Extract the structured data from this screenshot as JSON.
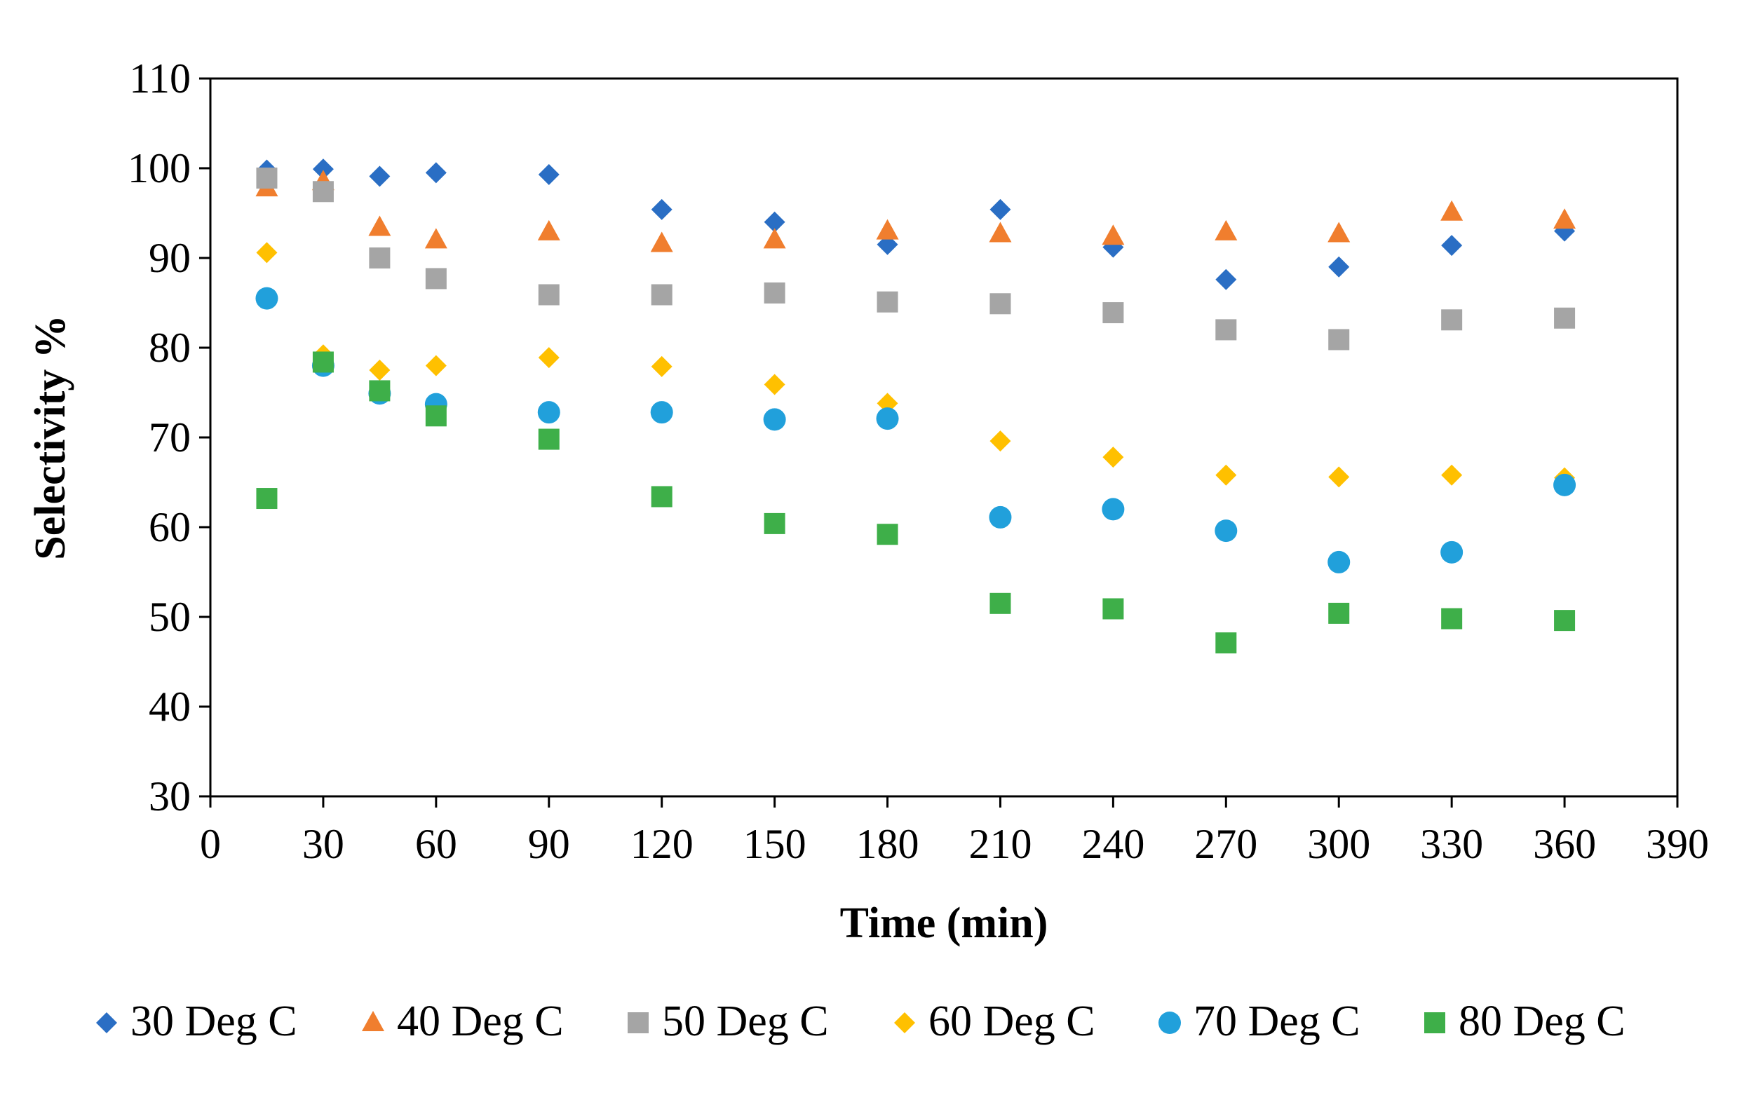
{
  "chart_data": {
    "type": "scatter",
    "title": "",
    "xlabel": "Time (min)",
    "ylabel": "Selectivity %",
    "xlim": [
      0,
      390
    ],
    "ylim": [
      30,
      110
    ],
    "xticks": [
      "0",
      "30",
      "60",
      "90",
      "120",
      "150",
      "180",
      "210",
      "240",
      "270",
      "300",
      "330",
      "360",
      "390"
    ],
    "yticks": [
      "30",
      "40",
      "50",
      "60",
      "70",
      "80",
      "90",
      "100",
      "110"
    ],
    "grid": false,
    "legend_position": "bottom",
    "series": [
      {
        "name": "30 Deg C",
        "marker": "diamond",
        "color": "#2A6EC4",
        "points": [
          [
            15,
            99.8
          ],
          [
            30,
            99.9
          ],
          [
            45,
            99.1
          ],
          [
            60,
            99.5
          ],
          [
            90,
            99.3
          ],
          [
            120,
            95.4
          ],
          [
            150,
            94.0
          ],
          [
            180,
            91.5
          ],
          [
            210,
            95.4
          ],
          [
            240,
            91.2
          ],
          [
            270,
            87.6
          ],
          [
            300,
            89.0
          ],
          [
            330,
            91.4
          ],
          [
            360,
            93.0
          ]
        ]
      },
      {
        "name": "40 Deg C",
        "marker": "triangle",
        "color": "#F07E2E",
        "points": [
          [
            15,
            97.8
          ],
          [
            30,
            98.5
          ],
          [
            45,
            93.4
          ],
          [
            60,
            92.0
          ],
          [
            90,
            92.9
          ],
          [
            120,
            91.6
          ],
          [
            150,
            92.0
          ],
          [
            180,
            93.0
          ],
          [
            210,
            92.7
          ],
          [
            240,
            92.4
          ],
          [
            270,
            92.9
          ],
          [
            300,
            92.7
          ],
          [
            330,
            95.1
          ],
          [
            360,
            94.2
          ]
        ]
      },
      {
        "name": "50 Deg C",
        "marker": "square",
        "color": "#A5A5A5",
        "points": [
          [
            15,
            98.9
          ],
          [
            30,
            97.4
          ],
          [
            45,
            90.0
          ],
          [
            60,
            87.7
          ],
          [
            90,
            85.9
          ],
          [
            120,
            85.9
          ],
          [
            150,
            86.1
          ],
          [
            180,
            85.1
          ],
          [
            210,
            84.9
          ],
          [
            240,
            83.9
          ],
          [
            270,
            82.0
          ],
          [
            300,
            80.9
          ],
          [
            330,
            83.1
          ],
          [
            360,
            83.3
          ]
        ]
      },
      {
        "name": "60 Deg C",
        "marker": "diamond",
        "color": "#FFC000",
        "points": [
          [
            15,
            90.6
          ],
          [
            30,
            79.2
          ],
          [
            45,
            77.5
          ],
          [
            60,
            78.0
          ],
          [
            90,
            78.9
          ],
          [
            120,
            77.9
          ],
          [
            150,
            75.9
          ],
          [
            180,
            73.8
          ],
          [
            210,
            69.6
          ],
          [
            240,
            67.8
          ],
          [
            270,
            65.8
          ],
          [
            300,
            65.6
          ],
          [
            330,
            65.8
          ],
          [
            360,
            65.5
          ]
        ]
      },
      {
        "name": "70 Deg C",
        "marker": "circle",
        "color": "#21A0DB",
        "points": [
          [
            15,
            85.5
          ],
          [
            30,
            78.0
          ],
          [
            45,
            74.9
          ],
          [
            60,
            73.7
          ],
          [
            90,
            72.8
          ],
          [
            120,
            72.8
          ],
          [
            150,
            72.0
          ],
          [
            180,
            72.1
          ],
          [
            210,
            61.1
          ],
          [
            240,
            62.0
          ],
          [
            270,
            59.6
          ],
          [
            300,
            56.1
          ],
          [
            330,
            57.2
          ],
          [
            360,
            64.7
          ]
        ]
      },
      {
        "name": "80 Deg C",
        "marker": "square",
        "color": "#3EAF49",
        "points": [
          [
            15,
            63.2
          ],
          [
            30,
            78.4
          ],
          [
            45,
            75.2
          ],
          [
            60,
            72.4
          ],
          [
            90,
            69.8
          ],
          [
            120,
            63.4
          ],
          [
            150,
            60.4
          ],
          [
            180,
            59.2
          ],
          [
            210,
            51.5
          ],
          [
            240,
            50.9
          ],
          [
            270,
            47.1
          ],
          [
            300,
            50.4
          ],
          [
            330,
            49.8
          ],
          [
            360,
            49.6
          ]
        ]
      }
    ]
  }
}
